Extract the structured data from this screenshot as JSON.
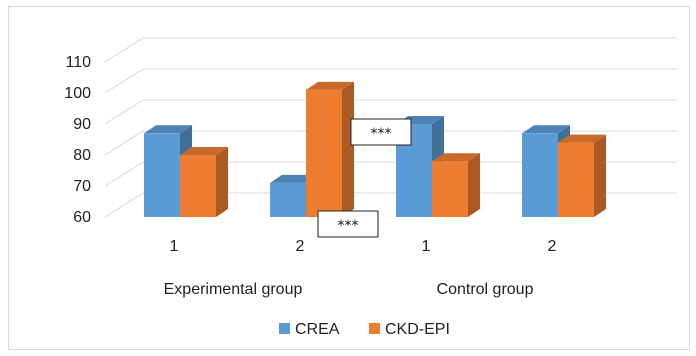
{
  "chart_data": {
    "type": "bar",
    "subtype": "3d-clustered-column",
    "title": "",
    "xlabel": "",
    "ylabel": "",
    "ylim": [
      60,
      110
    ],
    "yticks": [
      60,
      70,
      80,
      90,
      100,
      110
    ],
    "grid": true,
    "legend_position": "bottom",
    "categories": [
      "1",
      "2",
      "1",
      "2"
    ],
    "groups": [
      {
        "label": "Experimental group",
        "categories": [
          "1",
          "2"
        ]
      },
      {
        "label": "Control group",
        "categories": [
          "1",
          "2"
        ]
      }
    ],
    "series": [
      {
        "name": "CREA",
        "color": "#5B9BD5",
        "values": [
          87,
          71,
          90,
          87
        ]
      },
      {
        "name": "CKD-EPI",
        "color": "#ED7D31",
        "values": [
          80,
          101,
          78,
          84
        ]
      }
    ],
    "annotations": [
      {
        "text": "***",
        "near": "Experimental group 2, top"
      },
      {
        "text": "***",
        "near": "Experimental group 2, bottom"
      }
    ]
  }
}
